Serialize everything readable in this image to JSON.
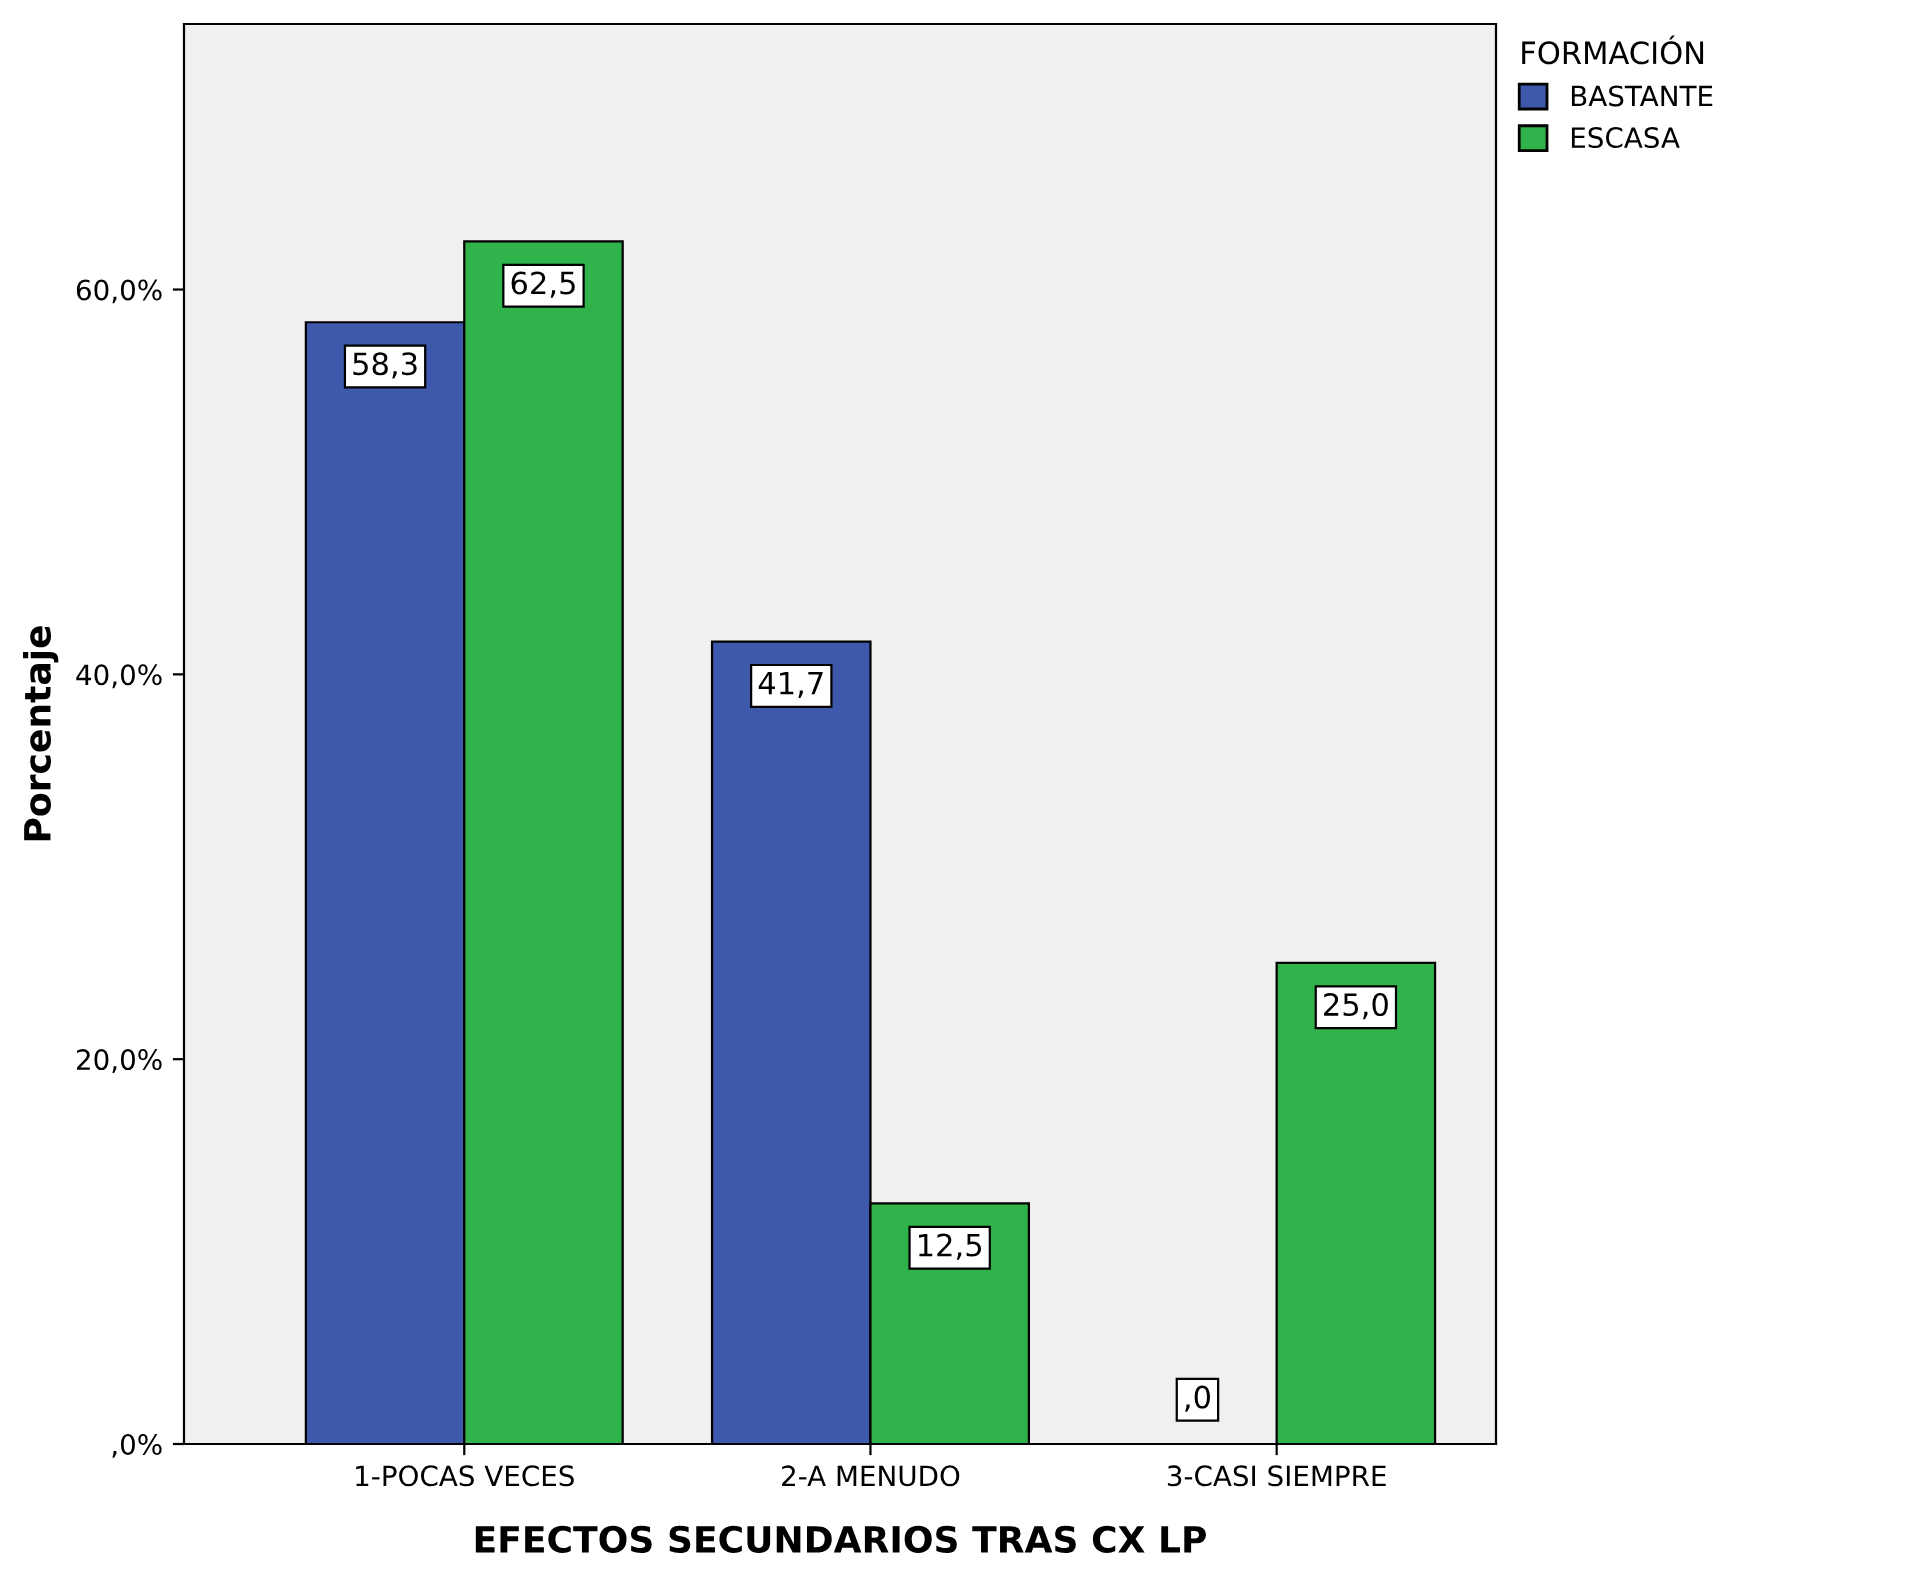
{
  "chart_data": {
    "type": "bar",
    "xlabel": "EFECTOS SECUNDARIOS TRAS CX LP",
    "ylabel": "Porcentaje",
    "legend_title": "FORMACIÓN",
    "legend": "top right",
    "grid": false,
    "categories": [
      "1-POCAS VECES",
      "2-A MENUDO",
      "3-CASI SIEMPRE"
    ],
    "ylim": [
      0,
      73.8
    ],
    "yticks": [
      {
        "value": 0,
        "label": ",0%"
      },
      {
        "value": 20,
        "label": "20,0%"
      },
      {
        "value": 40,
        "label": "40,0%"
      },
      {
        "value": 60,
        "label": "60,0%"
      }
    ],
    "series": [
      {
        "name": "BASTANTE",
        "color": "#3e58ac",
        "values": [
          58.3,
          41.7,
          0
        ],
        "value_labels": [
          "58,3",
          "41,7",
          ",0"
        ]
      },
      {
        "name": "ESCASA",
        "color": "#2fb34a",
        "values": [
          62.5,
          12.5,
          25.0
        ],
        "value_labels": [
          "62,5",
          "12,5",
          "25,0"
        ]
      }
    ]
  }
}
